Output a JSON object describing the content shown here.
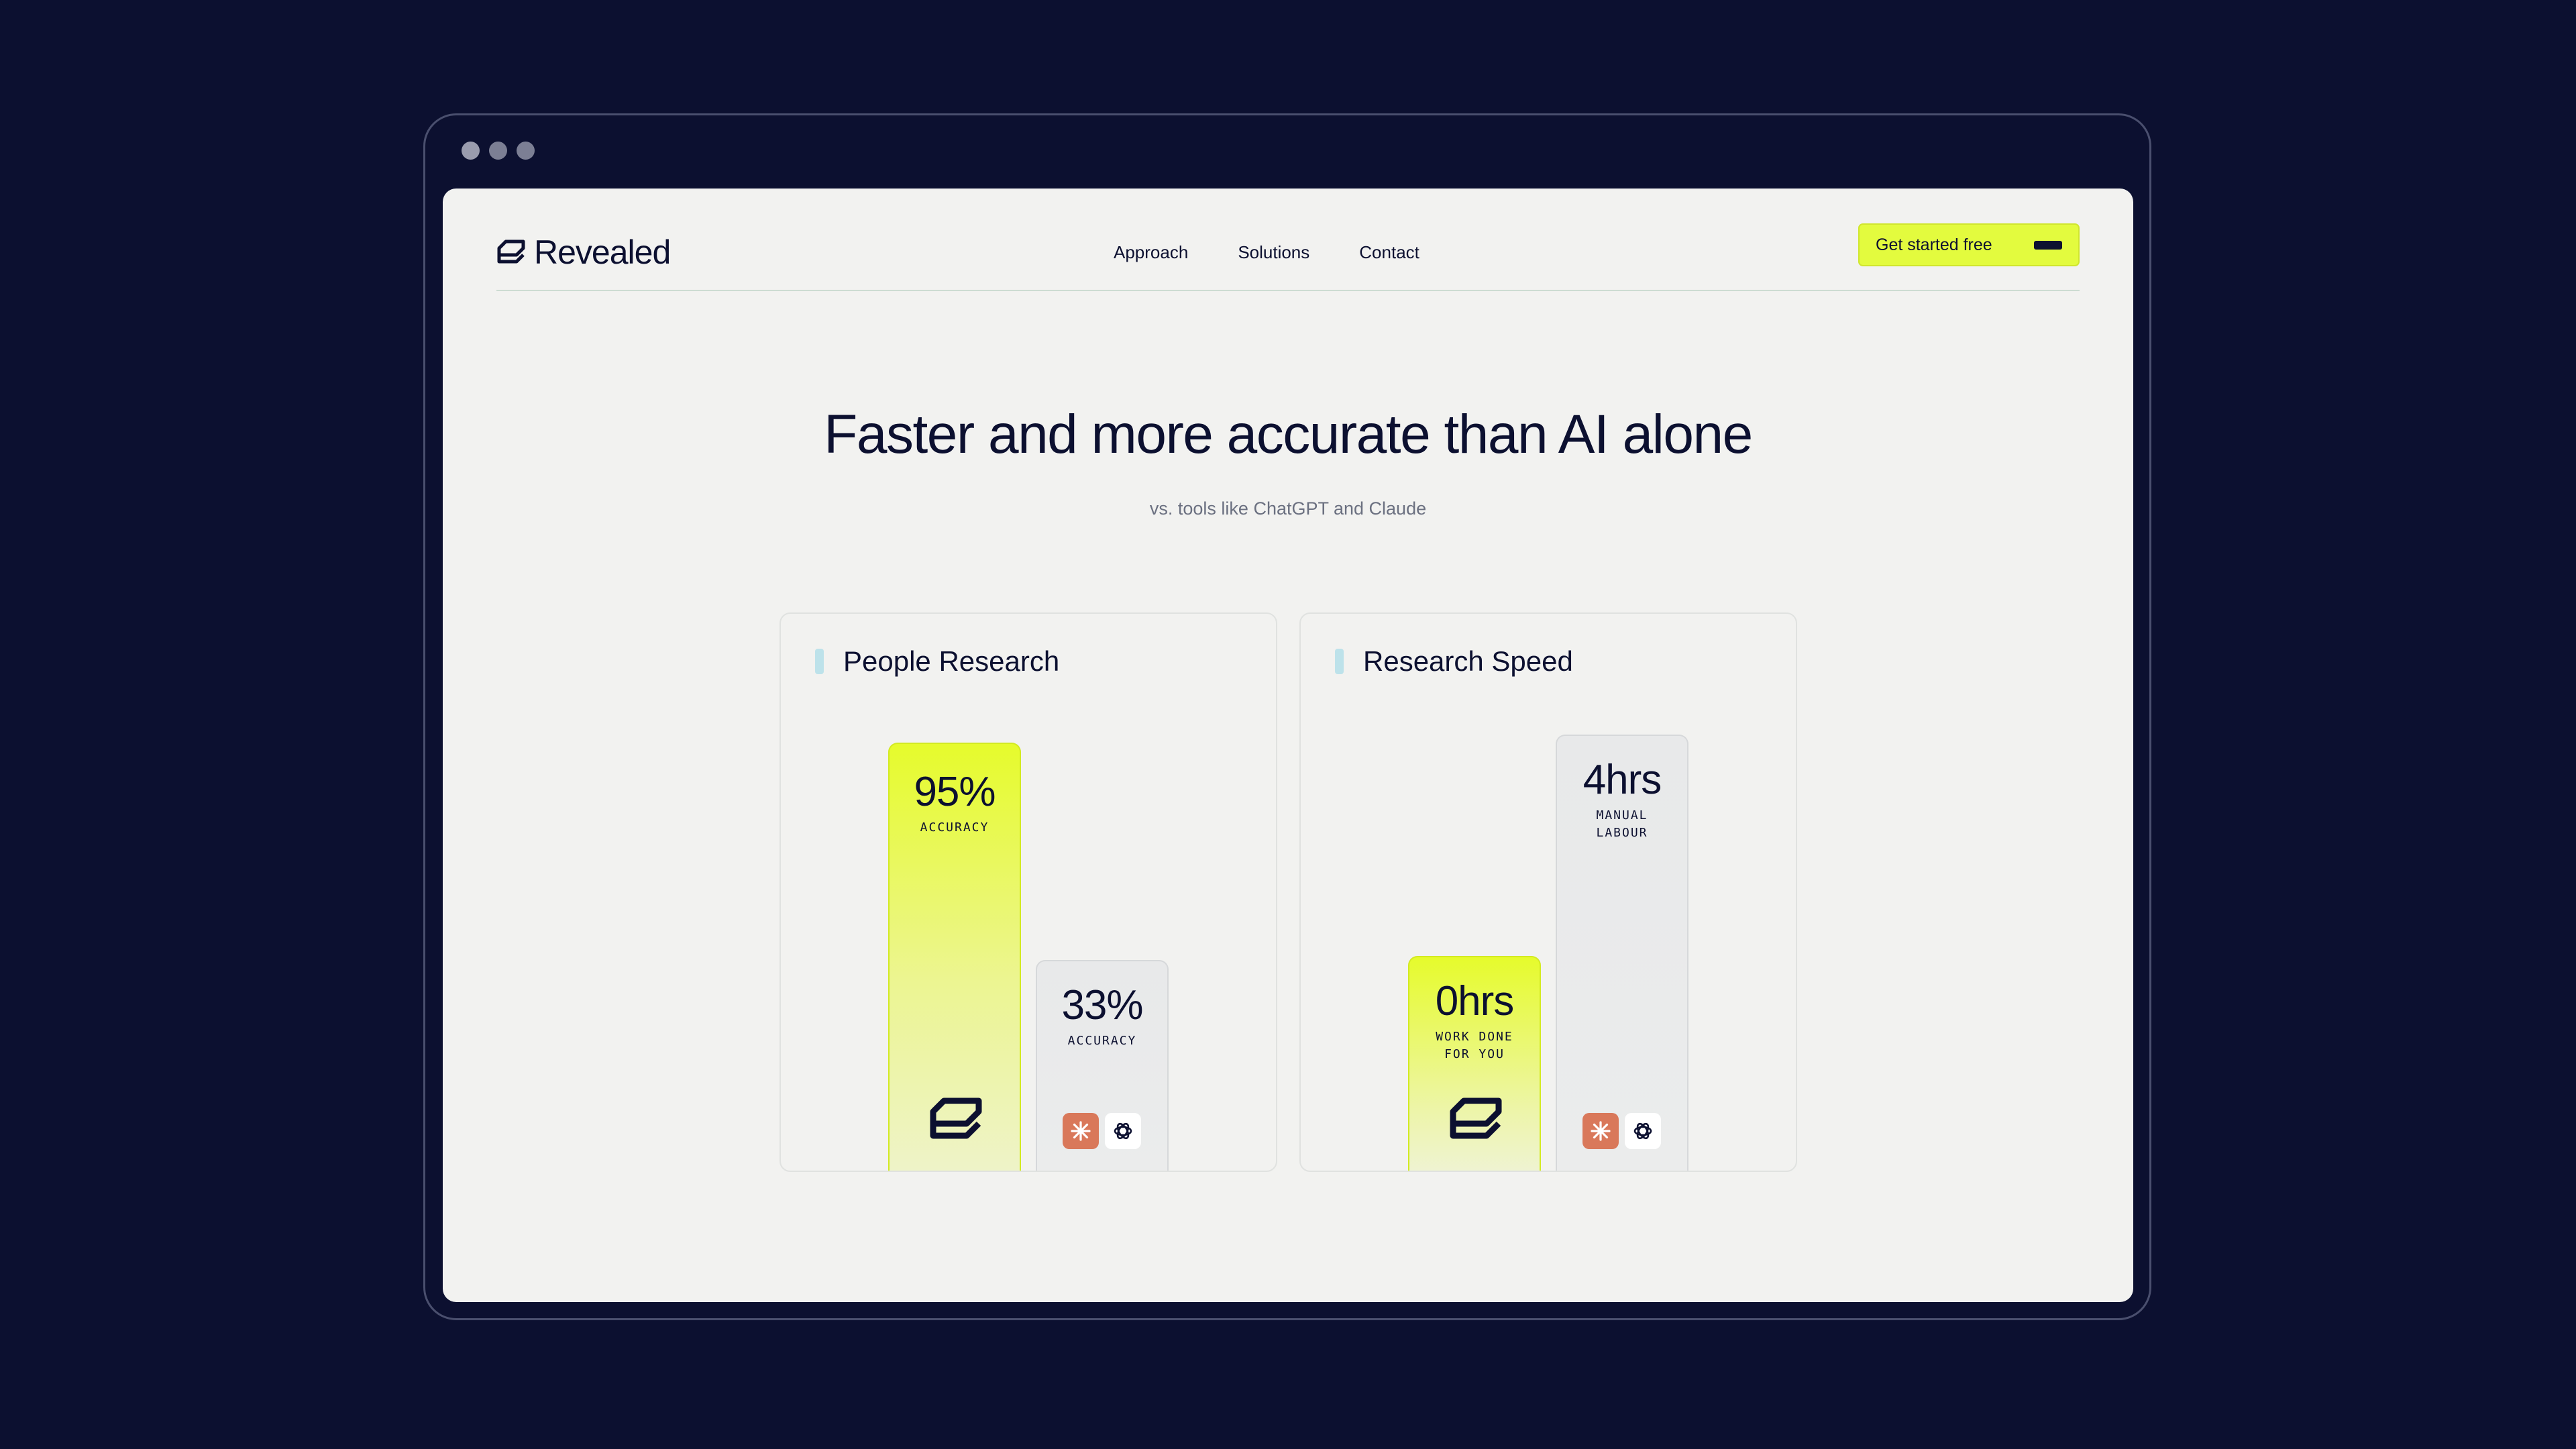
{
  "window": {
    "controls": [
      "close",
      "minimize",
      "maximize"
    ]
  },
  "header": {
    "logo_text": "Revealed",
    "nav": [
      {
        "label": "Approach"
      },
      {
        "label": "Solutions"
      },
      {
        "label": "Contact"
      }
    ],
    "cta_label": "Get started free"
  },
  "hero": {
    "title": "Faster and more accurate than AI alone",
    "subtitle": "vs. tools like ChatGPT and Claude"
  },
  "cards": [
    {
      "title": "People Research",
      "bars": [
        {
          "value": "95%",
          "label": "ACCURACY",
          "icon": "revealed-logo-icon"
        },
        {
          "value": "33%",
          "label": "ACCURACY",
          "icons": [
            "claude-icon",
            "chatgpt-icon"
          ]
        }
      ]
    },
    {
      "title": "Research Speed",
      "bars": [
        {
          "value": "0hrs",
          "label_line1": "WORK DONE",
          "label_line2": "FOR YOU",
          "icon": "revealed-logo-icon"
        },
        {
          "value": "4hrs",
          "label_line1": "MANUAL",
          "label_line2": "LABOUR",
          "icons": [
            "claude-icon",
            "chatgpt-icon"
          ]
        }
      ]
    }
  ],
  "colors": {
    "background": "#0c1030",
    "screen": "#f2f2f0",
    "accent": "#e3fb3e",
    "text": "#0c1030",
    "claude": "#d9785a"
  }
}
